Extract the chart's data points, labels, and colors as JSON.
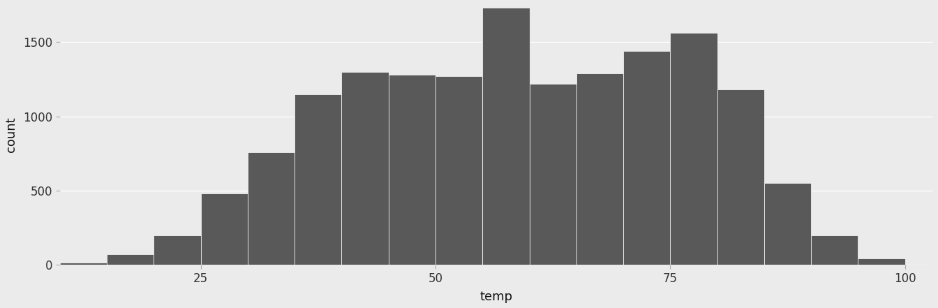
{
  "xlabel": "temp",
  "ylabel": "count",
  "bar_color": "#595959",
  "background_color": "#EBEBEB",
  "grid_color": "#FFFFFF",
  "xlim": [
    10.0,
    103.0
  ],
  "ylim": [
    0,
    1750
  ],
  "xticks": [
    25,
    50,
    75,
    100
  ],
  "yticks": [
    0,
    500,
    1000,
    1500
  ],
  "bin_edges": [
    10,
    15,
    20,
    25,
    30,
    35,
    40,
    45,
    50,
    55,
    60,
    65,
    70,
    75,
    80,
    85,
    90,
    95,
    100
  ],
  "bin_counts": [
    14,
    70,
    200,
    480,
    760,
    1150,
    1300,
    1280,
    1270,
    1730,
    1220,
    1290,
    1440,
    1560,
    1180,
    550,
    200,
    45
  ]
}
